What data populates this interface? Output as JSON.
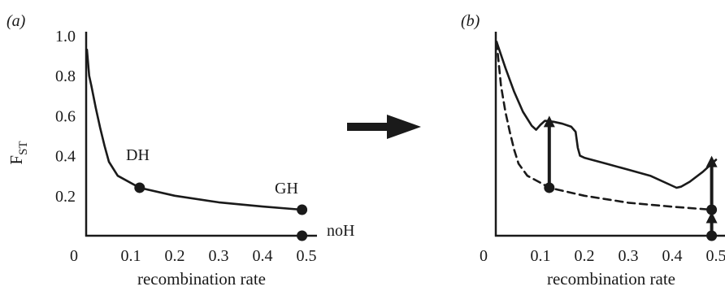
{
  "chart_data": [
    {
      "panel": "(a)",
      "type": "line",
      "xlabel": "recombination rate",
      "ylabel": "F",
      "ylabel_subscript": "ST",
      "xlim": [
        0,
        0.5
      ],
      "ylim": [
        0,
        1.0
      ],
      "x_ticks": [
        "0",
        "0.1",
        "0.2",
        "0.3",
        "0.4",
        "0.5"
      ],
      "y_ticks": [
        "0.2",
        "0.4",
        "0.6",
        "0.8",
        "1.0"
      ],
      "series": [
        {
          "style": "solid",
          "points": [
            [
              0.0,
              0.93
            ],
            [
              0.005,
              0.8
            ],
            [
              0.01,
              0.75
            ],
            [
              0.02,
              0.64
            ],
            [
              0.03,
              0.54
            ],
            [
              0.04,
              0.45
            ],
            [
              0.05,
              0.37
            ],
            [
              0.07,
              0.3
            ],
            [
              0.12,
              0.24
            ],
            [
              0.2,
              0.2
            ],
            [
              0.3,
              0.167
            ],
            [
              0.4,
              0.146
            ],
            [
              0.49,
              0.13
            ]
          ]
        }
      ],
      "markers": [
        {
          "label": "DH",
          "x": 0.12,
          "y": 0.24
        },
        {
          "label": "GH",
          "x": 0.49,
          "y": 0.13
        },
        {
          "label": "noH",
          "x": 0.49,
          "y": 0.0
        }
      ]
    },
    {
      "panel": "(b)",
      "type": "line",
      "xlabel": "recombination rate",
      "xlim": [
        0,
        0.5
      ],
      "ylim": [
        0,
        1.0
      ],
      "x_ticks": [
        "0",
        "0.1",
        "0.2",
        "0.3",
        "0.4",
        "0.5"
      ],
      "series": [
        {
          "style": "solid",
          "points": [
            [
              0.0,
              0.97
            ],
            [
              0.02,
              0.84
            ],
            [
              0.04,
              0.72
            ],
            [
              0.06,
              0.62
            ],
            [
              0.08,
              0.55
            ],
            [
              0.09,
              0.53
            ],
            [
              0.1,
              0.555
            ],
            [
              0.11,
              0.575
            ],
            [
              0.13,
              0.57
            ],
            [
              0.15,
              0.56
            ],
            [
              0.17,
              0.545
            ],
            [
              0.18,
              0.52
            ],
            [
              0.185,
              0.44
            ],
            [
              0.19,
              0.4
            ],
            [
              0.2,
              0.39
            ],
            [
              0.25,
              0.36
            ],
            [
              0.3,
              0.33
            ],
            [
              0.35,
              0.3
            ],
            [
              0.4,
              0.25
            ],
            [
              0.41,
              0.24
            ],
            [
              0.42,
              0.245
            ],
            [
              0.44,
              0.27
            ],
            [
              0.47,
              0.32
            ],
            [
              0.5,
              0.38
            ]
          ]
        },
        {
          "style": "dashed",
          "points": [
            [
              0.0,
              0.97
            ],
            [
              0.01,
              0.75
            ],
            [
              0.02,
              0.62
            ],
            [
              0.03,
              0.52
            ],
            [
              0.04,
              0.43
            ],
            [
              0.05,
              0.36
            ],
            [
              0.07,
              0.3
            ],
            [
              0.1,
              0.265
            ],
            [
              0.12,
              0.24
            ],
            [
              0.2,
              0.2
            ],
            [
              0.3,
              0.165
            ],
            [
              0.4,
              0.145
            ],
            [
              0.49,
              0.13
            ]
          ]
        }
      ],
      "markers": [
        {
          "x": 0.12,
          "y": 0.24
        },
        {
          "x": 0.49,
          "y": 0.13
        },
        {
          "x": 0.49,
          "y": 0.0
        }
      ],
      "arrows": [
        {
          "x": 0.12,
          "y_from": 0.26,
          "y_to": 0.6
        },
        {
          "x": 0.49,
          "y_from": 0.155,
          "y_to": 0.4
        },
        {
          "x": 0.49,
          "y_from": 0.02,
          "y_to": 0.12
        }
      ]
    }
  ]
}
